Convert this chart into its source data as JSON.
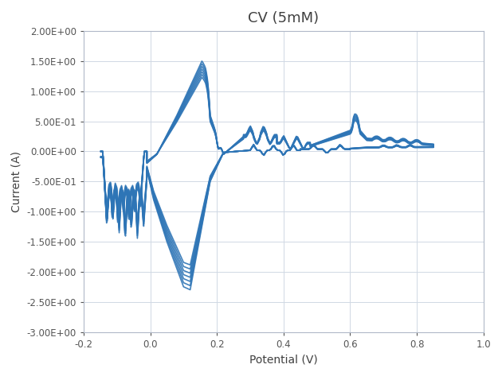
{
  "title": "CV (5mM)",
  "xlabel": "Potential (V)",
  "ylabel": "Current (A)",
  "xlim": [
    -0.2,
    1.0
  ],
  "ylim": [
    -3.0,
    2.0
  ],
  "xticks": [
    -0.2,
    0.0,
    0.2,
    0.4,
    0.6,
    0.8,
    1.0
  ],
  "yticks": [
    -3.0,
    -2.5,
    -2.0,
    -1.5,
    -1.0,
    -0.5,
    0.0,
    0.5,
    1.0,
    1.5,
    2.0
  ],
  "line_color": "#2E75B6",
  "line_width": 1.2,
  "grid_color": "#D0D8E4",
  "background_color": "#FFFFFF",
  "title_fontsize": 13,
  "label_fontsize": 10
}
